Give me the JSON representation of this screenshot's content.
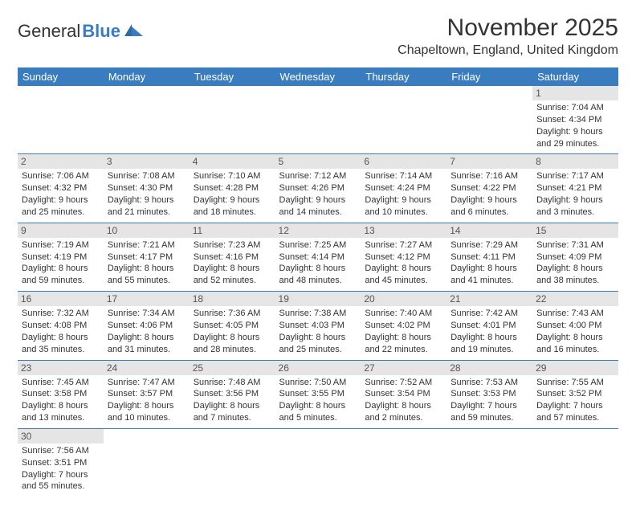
{
  "header": {
    "logo_part1": "General",
    "logo_part2": "Blue",
    "month_title": "November 2025",
    "location": "Chapeltown, England, United Kingdom"
  },
  "colors": {
    "header_bg": "#3a7cc0",
    "header_text": "#ffffff",
    "daynum_bg": "#e5e5e5",
    "border": "#3a7cc0",
    "body_text": "#333333"
  },
  "day_names": [
    "Sunday",
    "Monday",
    "Tuesday",
    "Wednesday",
    "Thursday",
    "Friday",
    "Saturday"
  ],
  "weeks": [
    [
      null,
      null,
      null,
      null,
      null,
      null,
      {
        "n": "1",
        "sr": "Sunrise: 7:04 AM",
        "ss": "Sunset: 4:34 PM",
        "dl": "Daylight: 9 hours and 29 minutes."
      }
    ],
    [
      {
        "n": "2",
        "sr": "Sunrise: 7:06 AM",
        "ss": "Sunset: 4:32 PM",
        "dl": "Daylight: 9 hours and 25 minutes."
      },
      {
        "n": "3",
        "sr": "Sunrise: 7:08 AM",
        "ss": "Sunset: 4:30 PM",
        "dl": "Daylight: 9 hours and 21 minutes."
      },
      {
        "n": "4",
        "sr": "Sunrise: 7:10 AM",
        "ss": "Sunset: 4:28 PM",
        "dl": "Daylight: 9 hours and 18 minutes."
      },
      {
        "n": "5",
        "sr": "Sunrise: 7:12 AM",
        "ss": "Sunset: 4:26 PM",
        "dl": "Daylight: 9 hours and 14 minutes."
      },
      {
        "n": "6",
        "sr": "Sunrise: 7:14 AM",
        "ss": "Sunset: 4:24 PM",
        "dl": "Daylight: 9 hours and 10 minutes."
      },
      {
        "n": "7",
        "sr": "Sunrise: 7:16 AM",
        "ss": "Sunset: 4:22 PM",
        "dl": "Daylight: 9 hours and 6 minutes."
      },
      {
        "n": "8",
        "sr": "Sunrise: 7:17 AM",
        "ss": "Sunset: 4:21 PM",
        "dl": "Daylight: 9 hours and 3 minutes."
      }
    ],
    [
      {
        "n": "9",
        "sr": "Sunrise: 7:19 AM",
        "ss": "Sunset: 4:19 PM",
        "dl": "Daylight: 8 hours and 59 minutes."
      },
      {
        "n": "10",
        "sr": "Sunrise: 7:21 AM",
        "ss": "Sunset: 4:17 PM",
        "dl": "Daylight: 8 hours and 55 minutes."
      },
      {
        "n": "11",
        "sr": "Sunrise: 7:23 AM",
        "ss": "Sunset: 4:16 PM",
        "dl": "Daylight: 8 hours and 52 minutes."
      },
      {
        "n": "12",
        "sr": "Sunrise: 7:25 AM",
        "ss": "Sunset: 4:14 PM",
        "dl": "Daylight: 8 hours and 48 minutes."
      },
      {
        "n": "13",
        "sr": "Sunrise: 7:27 AM",
        "ss": "Sunset: 4:12 PM",
        "dl": "Daylight: 8 hours and 45 minutes."
      },
      {
        "n": "14",
        "sr": "Sunrise: 7:29 AM",
        "ss": "Sunset: 4:11 PM",
        "dl": "Daylight: 8 hours and 41 minutes."
      },
      {
        "n": "15",
        "sr": "Sunrise: 7:31 AM",
        "ss": "Sunset: 4:09 PM",
        "dl": "Daylight: 8 hours and 38 minutes."
      }
    ],
    [
      {
        "n": "16",
        "sr": "Sunrise: 7:32 AM",
        "ss": "Sunset: 4:08 PM",
        "dl": "Daylight: 8 hours and 35 minutes."
      },
      {
        "n": "17",
        "sr": "Sunrise: 7:34 AM",
        "ss": "Sunset: 4:06 PM",
        "dl": "Daylight: 8 hours and 31 minutes."
      },
      {
        "n": "18",
        "sr": "Sunrise: 7:36 AM",
        "ss": "Sunset: 4:05 PM",
        "dl": "Daylight: 8 hours and 28 minutes."
      },
      {
        "n": "19",
        "sr": "Sunrise: 7:38 AM",
        "ss": "Sunset: 4:03 PM",
        "dl": "Daylight: 8 hours and 25 minutes."
      },
      {
        "n": "20",
        "sr": "Sunrise: 7:40 AM",
        "ss": "Sunset: 4:02 PM",
        "dl": "Daylight: 8 hours and 22 minutes."
      },
      {
        "n": "21",
        "sr": "Sunrise: 7:42 AM",
        "ss": "Sunset: 4:01 PM",
        "dl": "Daylight: 8 hours and 19 minutes."
      },
      {
        "n": "22",
        "sr": "Sunrise: 7:43 AM",
        "ss": "Sunset: 4:00 PM",
        "dl": "Daylight: 8 hours and 16 minutes."
      }
    ],
    [
      {
        "n": "23",
        "sr": "Sunrise: 7:45 AM",
        "ss": "Sunset: 3:58 PM",
        "dl": "Daylight: 8 hours and 13 minutes."
      },
      {
        "n": "24",
        "sr": "Sunrise: 7:47 AM",
        "ss": "Sunset: 3:57 PM",
        "dl": "Daylight: 8 hours and 10 minutes."
      },
      {
        "n": "25",
        "sr": "Sunrise: 7:48 AM",
        "ss": "Sunset: 3:56 PM",
        "dl": "Daylight: 8 hours and 7 minutes."
      },
      {
        "n": "26",
        "sr": "Sunrise: 7:50 AM",
        "ss": "Sunset: 3:55 PM",
        "dl": "Daylight: 8 hours and 5 minutes."
      },
      {
        "n": "27",
        "sr": "Sunrise: 7:52 AM",
        "ss": "Sunset: 3:54 PM",
        "dl": "Daylight: 8 hours and 2 minutes."
      },
      {
        "n": "28",
        "sr": "Sunrise: 7:53 AM",
        "ss": "Sunset: 3:53 PM",
        "dl": "Daylight: 7 hours and 59 minutes."
      },
      {
        "n": "29",
        "sr": "Sunrise: 7:55 AM",
        "ss": "Sunset: 3:52 PM",
        "dl": "Daylight: 7 hours and 57 minutes."
      }
    ],
    [
      {
        "n": "30",
        "sr": "Sunrise: 7:56 AM",
        "ss": "Sunset: 3:51 PM",
        "dl": "Daylight: 7 hours and 55 minutes."
      },
      null,
      null,
      null,
      null,
      null,
      null
    ]
  ]
}
